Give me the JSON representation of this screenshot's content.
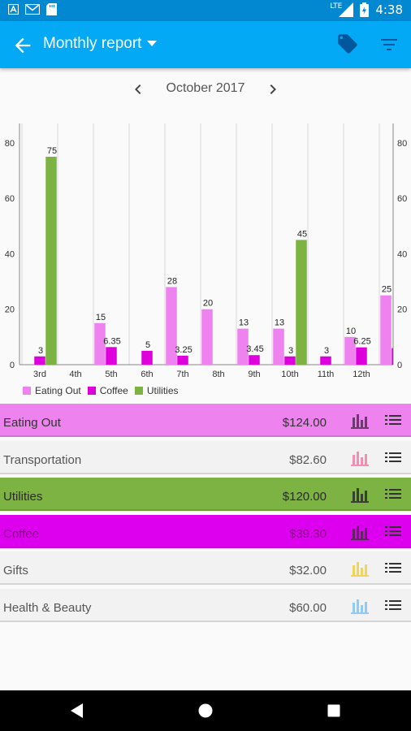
{
  "status_bar": {
    "time": "4:38",
    "network": "LTE",
    "icons": [
      "a-app-icon",
      "gmail-icon",
      "sd-card-icon",
      "signal-icon",
      "battery-icon"
    ]
  },
  "app_bar": {
    "title": "Monthly report",
    "icons": [
      "back-arrow-icon",
      "dropdown-caret-icon",
      "tag-icon",
      "filter-icon"
    ],
    "color": "#03a9f4",
    "status_color": "#0288d1"
  },
  "month_nav": {
    "label": "October 2017",
    "icons": [
      "chevron-left-icon",
      "chevron-right-icon"
    ]
  },
  "chart_data": {
    "type": "bar",
    "categories": [
      "3rd",
      "4th",
      "5th",
      "6th",
      "7th",
      "8th",
      "9th",
      "10th",
      "11th",
      "12th",
      ""
    ],
    "series": [
      {
        "name": "Eating Out",
        "color": "#ee82ee",
        "values": [
          null,
          null,
          15,
          null,
          28,
          20,
          13,
          13,
          null,
          10,
          25
        ]
      },
      {
        "name": "Coffee",
        "color": "#dd00dd",
        "values": [
          3,
          null,
          6.35,
          5,
          3.25,
          null,
          3.45,
          3,
          3,
          6.25,
          6
        ]
      },
      {
        "name": "Utilities",
        "color": "#7cb342",
        "values": [
          75,
          null,
          null,
          null,
          null,
          null,
          null,
          45,
          null,
          null,
          null
        ]
      }
    ],
    "data_labels": [
      [
        "",
        "",
        "15",
        "",
        "28",
        "20",
        "13",
        "13",
        "",
        "10",
        "25"
      ],
      [
        "3",
        "",
        "6.35",
        "5",
        "3.25",
        "",
        "3.45",
        "3",
        "3",
        "6.25",
        ""
      ],
      [
        "75",
        "",
        "",
        "",
        "",
        "",
        "",
        "45",
        "",
        "",
        ""
      ]
    ],
    "y_ticks": [
      "0",
      "20",
      "40",
      "60",
      "80"
    ],
    "ylim": [
      0,
      87
    ],
    "grid": true,
    "legend_position": "bottom-left"
  },
  "categories_list": [
    {
      "name": "Eating Out",
      "amount": "$124.00",
      "bg": "#ee82ee",
      "icon_color": "#6d3a6d",
      "text_color": "#333333"
    },
    {
      "name": "Transportation",
      "amount": "$82.60",
      "bg": "#f2f2f2",
      "icon_color": "#f48fb1",
      "text_color": "#555555"
    },
    {
      "name": "Utilities",
      "amount": "$120.00",
      "bg": "#7cb342",
      "icon_color": "#3a3f35",
      "text_color": "#2a2a2a"
    },
    {
      "name": "Coffee",
      "amount": "$39.30",
      "bg": "#dd00ee",
      "icon_color": "#5a2a5a",
      "text_color": "#8a008a"
    },
    {
      "name": "Gifts",
      "amount": "$32.00",
      "bg": "#f2f2f2",
      "icon_color": "#f2d45c",
      "text_color": "#555555"
    },
    {
      "name": "Health & Beauty",
      "amount": "$60.00",
      "bg": "#f2f2f2",
      "icon_color": "#90caf9",
      "text_color": "#555555"
    }
  ],
  "nav_bar": {
    "icons": [
      "back-triangle-icon",
      "home-circle-icon",
      "recents-square-icon"
    ]
  }
}
